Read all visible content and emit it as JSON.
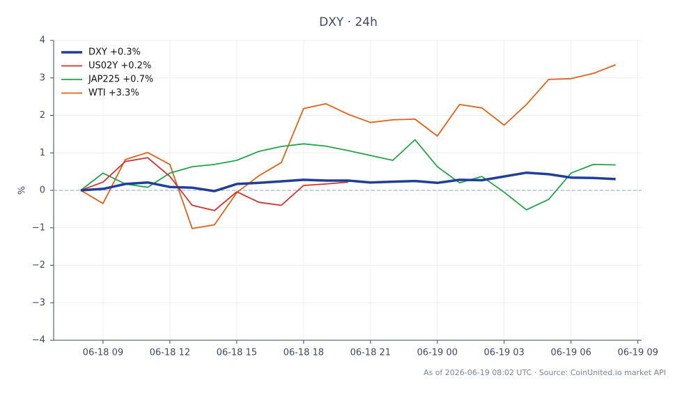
{
  "chart_data": {
    "type": "line",
    "title": "DXY · 24h",
    "y_label": "%",
    "footer": "As of 2026-06-19 08:02 UTC · Source: CoinUnited.io market API",
    "x": [
      "06-18 08",
      "06-18 09",
      "06-18 10",
      "06-18 11",
      "06-18 12",
      "06-18 13",
      "06-18 14",
      "06-18 15",
      "06-18 16",
      "06-18 17",
      "06-18 18",
      "06-18 19",
      "06-18 20",
      "06-18 21",
      "06-18 22",
      "06-18 23",
      "06-19 00",
      "06-19 01",
      "06-19 02",
      "06-19 03",
      "06-19 04",
      "06-19 05",
      "06-19 06",
      "06-19 07",
      "06-19 08"
    ],
    "series": [
      {
        "name": "DXY +0.3%",
        "color": "#1f3f99",
        "width": 3.5,
        "values": [
          0,
          0.04,
          0.17,
          0.21,
          0.09,
          0.07,
          -0.02,
          0.17,
          0.2,
          0.24,
          0.28,
          0.26,
          0.26,
          0.21,
          0.23,
          0.25,
          0.2,
          0.28,
          0.27,
          0.37,
          0.47,
          0.43,
          0.34,
          0.33,
          0.3
        ]
      },
      {
        "name": "US02Y +0.2%",
        "color": "#d0312d",
        "width": 1.8,
        "values": [
          0,
          0.22,
          0.77,
          0.87,
          0.37,
          -0.4,
          -0.54,
          -0.04,
          -0.32,
          -0.4,
          0.13,
          0.17,
          0.22,
          null,
          null,
          null,
          null,
          null,
          null,
          null,
          null,
          null,
          null,
          null,
          null
        ]
      },
      {
        "name": "JAP225 +0.7%",
        "color": "#22a34a",
        "width": 1.8,
        "values": [
          0,
          0.46,
          0.17,
          0.08,
          0.46,
          0.63,
          0.69,
          0.8,
          1.04,
          1.17,
          1.24,
          1.18,
          1.06,
          0.93,
          0.8,
          1.35,
          0.63,
          0.2,
          0.37,
          -0.05,
          -0.52,
          -0.24,
          0.46,
          0.69,
          0.68
        ]
      },
      {
        "name": "WTI +3.3%",
        "color": "#e0601a",
        "width": 1.8,
        "values": [
          0,
          -0.35,
          0.82,
          1.01,
          0.69,
          -1.02,
          -0.92,
          -0.06,
          0.39,
          0.74,
          2.18,
          2.31,
          2.03,
          1.81,
          1.88,
          1.9,
          1.45,
          2.29,
          2.2,
          1.74,
          2.29,
          2.96,
          2.98,
          3.12,
          3.35
        ]
      }
    ],
    "xlim": [
      "06-18 06:47",
      "06-19 09:10"
    ],
    "xticks": [
      "06-18 09",
      "06-18 12",
      "06-18 15",
      "06-18 18",
      "06-18 21",
      "06-19 00",
      "06-19 03",
      "06-19 06",
      "06-19 09"
    ],
    "ylim": [
      -4,
      4
    ],
    "yticks": [
      {
        "value": -4,
        "label": "−4"
      },
      {
        "value": -3,
        "label": "−3"
      },
      {
        "value": -2,
        "label": "−2"
      },
      {
        "value": -1,
        "label": "−1"
      },
      0,
      1,
      2,
      3,
      4
    ],
    "hlines": [
      0
    ],
    "grid": true,
    "legend": "upper left"
  }
}
